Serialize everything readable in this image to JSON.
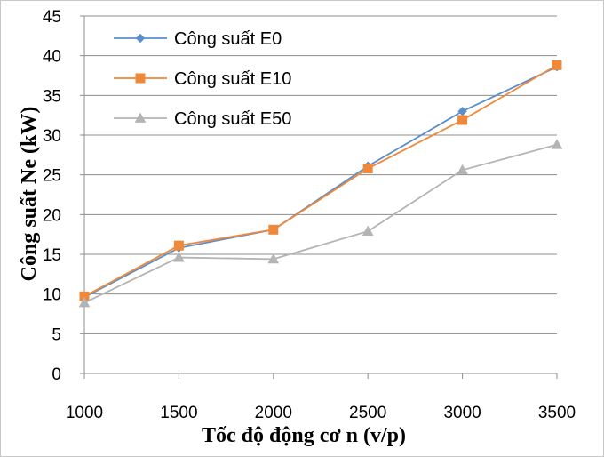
{
  "chart_data": {
    "type": "line",
    "xlabel": "Tốc độ động cơ n (v/p)",
    "ylabel": "Công suất Ne (kW)",
    "x": [
      1000,
      1500,
      2000,
      2500,
      3000,
      3500
    ],
    "x_tick_labels": [
      "1000",
      "1500",
      "2000",
      "2500",
      "3000",
      "3500"
    ],
    "y_tick_labels": [
      "0",
      "5",
      "10",
      "15",
      "20",
      "25",
      "30",
      "35",
      "40",
      "45"
    ],
    "xlim": [
      1000,
      3500
    ],
    "ylim": [
      0,
      45
    ],
    "grid": "horizontal",
    "legend_position": "top-left",
    "series": [
      {
        "name": "Công suất E0",
        "color": "#5b8fc9",
        "marker": "diamond",
        "values": [
          9.6,
          15.8,
          18.1,
          26.1,
          33.0,
          38.6
        ]
      },
      {
        "name": "Công suất E10",
        "color": "#f0883a",
        "marker": "square",
        "values": [
          9.7,
          16.1,
          18.1,
          25.8,
          31.9,
          38.8
        ]
      },
      {
        "name": "Công suất E50",
        "color": "#b4b4b4",
        "marker": "triangle",
        "values": [
          8.9,
          14.6,
          14.4,
          17.9,
          25.6,
          28.8
        ]
      }
    ]
  }
}
